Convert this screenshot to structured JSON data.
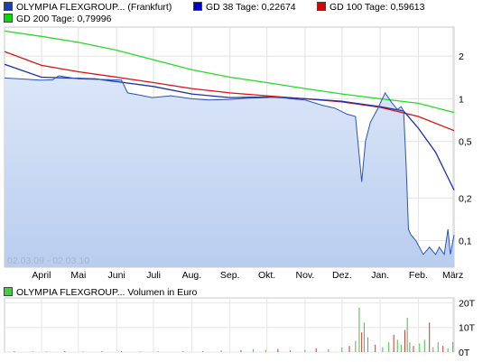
{
  "legend": [
    {
      "label": "OLYMPIA FLEXGROUP... (Frankfurt)",
      "color": "#1a3fb0"
    },
    {
      "label": "GD 38 Tage: 0,22674",
      "color": "#0000cc"
    },
    {
      "label": "GD 100 Tage: 0,59613",
      "color": "#dd0000"
    },
    {
      "label": "GD 200 Tage: 0,79996",
      "color": "#00dd00"
    }
  ],
  "volume_legend": {
    "label": "OLYMPIA FLEXGROUP... Volumen in Euro",
    "color": "#44cc44"
  },
  "date_range": "02.03.09 - 02.03.10",
  "chart_data": [
    {
      "type": "line",
      "scale": "log",
      "x_ticks": [
        "April",
        "Mai",
        "Juni",
        "Juli",
        "Aug.",
        "Sep.",
        "Okt.",
        "Nov.",
        "Dez.",
        "Jan.",
        "Feb.",
        "März"
      ],
      "y_ticks": [
        "2",
        "1",
        "0,5",
        "0,2",
        "0,1"
      ],
      "y_tick_values": [
        2,
        1,
        0.5,
        0.2,
        0.1
      ],
      "ylim": [
        0.065,
        3.2
      ],
      "series": [
        {
          "name": "OLYMPIA FLEXGROUP... (Frankfurt)",
          "color": "#2a55b8",
          "x": [
            "02.03.09",
            "15.03.09",
            "01.04.09",
            "10.04.09",
            "15.04.09",
            "01.05.09",
            "15.05.09",
            "30.05.09",
            "05.06.09",
            "10.06.09",
            "20.06.09",
            "30.06.09",
            "15.07.09",
            "01.08.09",
            "15.08.09",
            "01.09.09",
            "15.09.09",
            "01.10.09",
            "10.10.09",
            "20.10.09",
            "01.11.09",
            "15.11.09",
            "25.11.09",
            "05.12.09",
            "12.12.09",
            "17.12.09",
            "20.12.09",
            "24.12.09",
            "30.12.09",
            "05.01.10",
            "10.01.10",
            "15.01.10",
            "18.01.10",
            "20.01.10",
            "22.01.10",
            "24.01.10",
            "26.01.10",
            "30.01.10",
            "05.02.10",
            "10.02.10",
            "15.02.10",
            "18.02.10",
            "22.02.10",
            "25.02.10",
            "27.02.10",
            "02.03.10"
          ],
          "y": [
            1.4,
            1.38,
            1.35,
            1.36,
            1.45,
            1.38,
            1.37,
            1.36,
            1.35,
            1.1,
            1.06,
            1.02,
            1.05,
            1.0,
            0.98,
            0.99,
            1.01,
            1.02,
            1.03,
            1.0,
            0.98,
            0.9,
            0.86,
            0.78,
            0.75,
            0.26,
            0.5,
            0.68,
            0.85,
            1.1,
            0.95,
            0.84,
            0.88,
            0.82,
            0.35,
            0.12,
            0.11,
            0.1,
            0.08,
            0.09,
            0.08,
            0.09,
            0.08,
            0.12,
            0.08,
            0.11
          ]
        },
        {
          "name": "GD 38 Tage: 0,22674",
          "color": "#1a2fb0",
          "x": [
            "02.03.09",
            "01.04.09",
            "15.05.09",
            "01.07.09",
            "01.08.09",
            "01.09.09",
            "01.10.09",
            "01.11.09",
            "01.12.09",
            "01.01.10",
            "20.01.10",
            "01.02.10",
            "15.02.10",
            "02.03.10"
          ],
          "y": [
            1.75,
            1.42,
            1.38,
            1.22,
            1.08,
            1.02,
            1.03,
            1.0,
            0.96,
            0.88,
            0.82,
            0.62,
            0.42,
            0.227
          ]
        },
        {
          "name": "GD 100 Tage: 0,59613",
          "color": "#dd1111",
          "x": [
            "02.03.09",
            "01.04.09",
            "01.05.09",
            "01.06.09",
            "01.07.09",
            "01.08.09",
            "01.09.09",
            "01.10.09",
            "01.11.09",
            "01.12.09",
            "01.01.10",
            "01.02.10",
            "02.03.10"
          ],
          "y": [
            2.15,
            1.72,
            1.55,
            1.42,
            1.3,
            1.18,
            1.1,
            1.05,
            1.0,
            0.95,
            0.87,
            0.75,
            0.596
          ]
        },
        {
          "name": "GD 200 Tage: 0,79996",
          "color": "#22dd22",
          "x": [
            "02.03.09",
            "01.04.09",
            "01.05.09",
            "01.06.09",
            "01.07.09",
            "01.08.09",
            "01.09.09",
            "01.10.09",
            "01.11.09",
            "01.12.09",
            "01.01.10",
            "01.02.10",
            "02.03.10"
          ],
          "y": [
            3.0,
            2.75,
            2.5,
            2.2,
            1.88,
            1.6,
            1.42,
            1.3,
            1.18,
            1.08,
            1.0,
            0.93,
            0.8
          ]
        }
      ],
      "grid": true
    },
    {
      "type": "bar",
      "title": "OLYMPIA FLEXGROUP... Volumen in Euro",
      "y_ticks": [
        "20T",
        "10T",
        "0T"
      ],
      "y_tick_values": [
        20000,
        10000,
        0
      ],
      "ylim": [
        0,
        22000
      ],
      "grid": true,
      "bars": [
        {
          "x": "10.03.09",
          "v": 300
        },
        {
          "x": "25.03.09",
          "v": 250
        },
        {
          "x": "05.04.09",
          "v": 200
        },
        {
          "x": "20.04.09",
          "v": 350
        },
        {
          "x": "05.05.09",
          "v": 200
        },
        {
          "x": "20.05.09",
          "v": 400
        },
        {
          "x": "05.06.09",
          "v": 300
        },
        {
          "x": "20.06.09",
          "v": 200
        },
        {
          "x": "05.07.09",
          "v": 250
        },
        {
          "x": "25.07.09",
          "v": 300
        },
        {
          "x": "10.08.09",
          "v": 400
        },
        {
          "x": "25.08.09",
          "v": 600
        },
        {
          "x": "10.09.09",
          "v": 800
        },
        {
          "x": "20.09.09",
          "v": 1200
        },
        {
          "x": "30.09.09",
          "v": 900
        },
        {
          "x": "10.10.09",
          "v": 1300
        },
        {
          "x": "20.10.09",
          "v": 700
        },
        {
          "x": "01.11.09",
          "v": 900
        },
        {
          "x": "10.11.09",
          "v": 1500
        },
        {
          "x": "20.11.09",
          "v": 1100
        },
        {
          "x": "01.12.09",
          "v": 1800
        },
        {
          "x": "07.12.09",
          "v": 2500
        },
        {
          "x": "12.12.09",
          "v": 4500
        },
        {
          "x": "15.12.09",
          "v": 18000
        },
        {
          "x": "17.12.09",
          "v": 8000
        },
        {
          "x": "19.12.09",
          "v": 12000
        },
        {
          "x": "22.12.09",
          "v": 6000
        },
        {
          "x": "28.12.09",
          "v": 3000
        },
        {
          "x": "03.01.10",
          "v": 2000
        },
        {
          "x": "08.01.10",
          "v": 4000
        },
        {
          "x": "12.01.10",
          "v": 7000
        },
        {
          "x": "15.01.10",
          "v": 5000
        },
        {
          "x": "18.01.10",
          "v": 3000
        },
        {
          "x": "21.01.10",
          "v": 9000
        },
        {
          "x": "23.01.10",
          "v": 14000
        },
        {
          "x": "25.01.10",
          "v": 4000
        },
        {
          "x": "28.01.10",
          "v": 2500
        },
        {
          "x": "02.02.10",
          "v": 3500
        },
        {
          "x": "06.02.10",
          "v": 5000
        },
        {
          "x": "10.02.10",
          "v": 12000
        },
        {
          "x": "13.02.10",
          "v": 2000
        },
        {
          "x": "17.02.10",
          "v": 4000
        },
        {
          "x": "21.02.10",
          "v": 2500
        },
        {
          "x": "25.02.10",
          "v": 1500
        },
        {
          "x": "01.03.10",
          "v": 4000
        }
      ]
    }
  ]
}
